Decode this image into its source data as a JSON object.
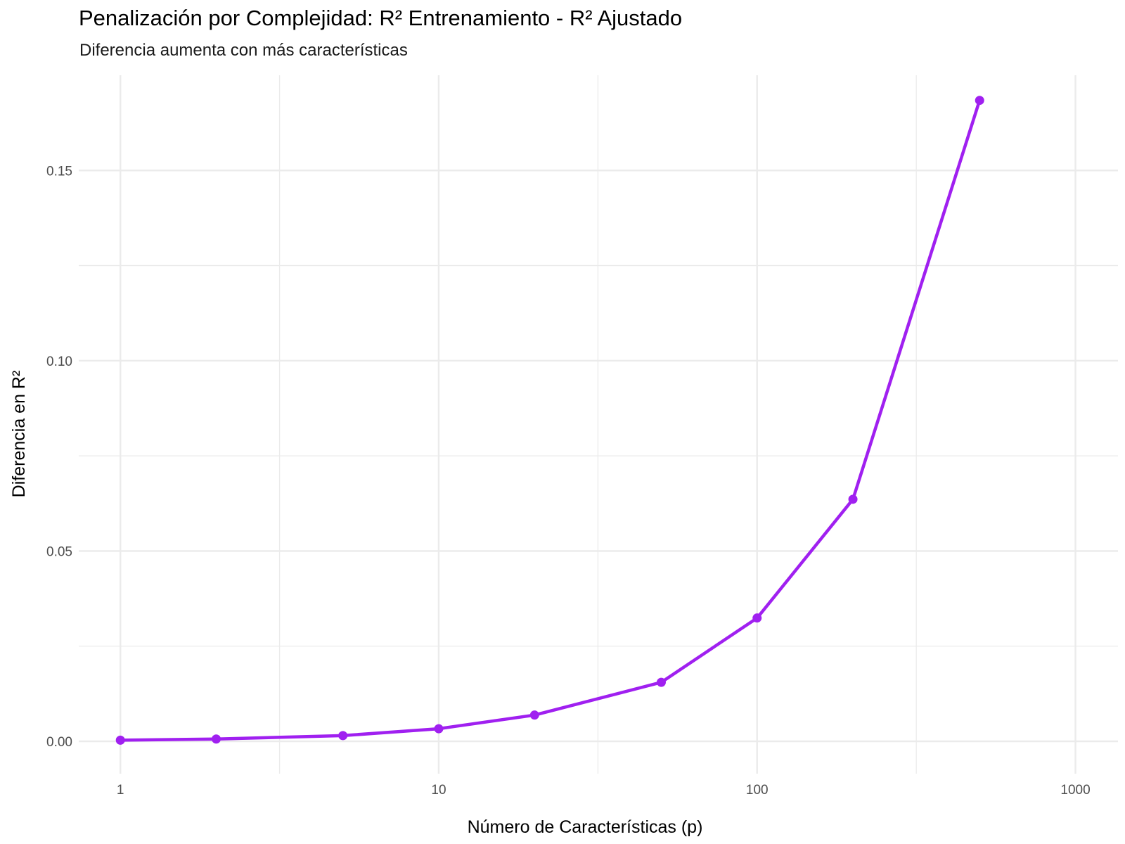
{
  "chart_data": {
    "type": "line",
    "title": "Penalización por Complejidad: R² Entrenamiento - R² Ajustado",
    "subtitle": "Diferencia aumenta con más características",
    "xlabel": "Número de Características (p)",
    "ylabel": "Diferencia en R²",
    "x_scale": "log10",
    "xlim": [
      0.74,
      1360
    ],
    "ylim": [
      -0.0085,
      0.175
    ],
    "x_ticks": [
      {
        "value": 1,
        "label": "1"
      },
      {
        "value": 10,
        "label": "10"
      },
      {
        "value": 100,
        "label": "100"
      },
      {
        "value": 1000,
        "label": "1000"
      }
    ],
    "x_minor": [
      3.1623,
      31.623,
      316.23
    ],
    "y_ticks": [
      {
        "value": 0,
        "label": "0.00"
      },
      {
        "value": 0.05,
        "label": "0.05"
      },
      {
        "value": 0.1,
        "label": "0.10"
      },
      {
        "value": 0.15,
        "label": "0.15"
      }
    ],
    "y_minor": [
      0.025,
      0.075,
      0.125
    ],
    "grid": true,
    "series": [
      {
        "color": "#a020f0",
        "x": [
          1,
          2,
          5,
          10,
          20,
          50,
          100,
          200,
          500
        ],
        "y": [
          0.0003,
          0.0006,
          0.0015,
          0.0033,
          0.0069,
          0.0155,
          0.0324,
          0.0636,
          0.1684
        ]
      }
    ]
  }
}
